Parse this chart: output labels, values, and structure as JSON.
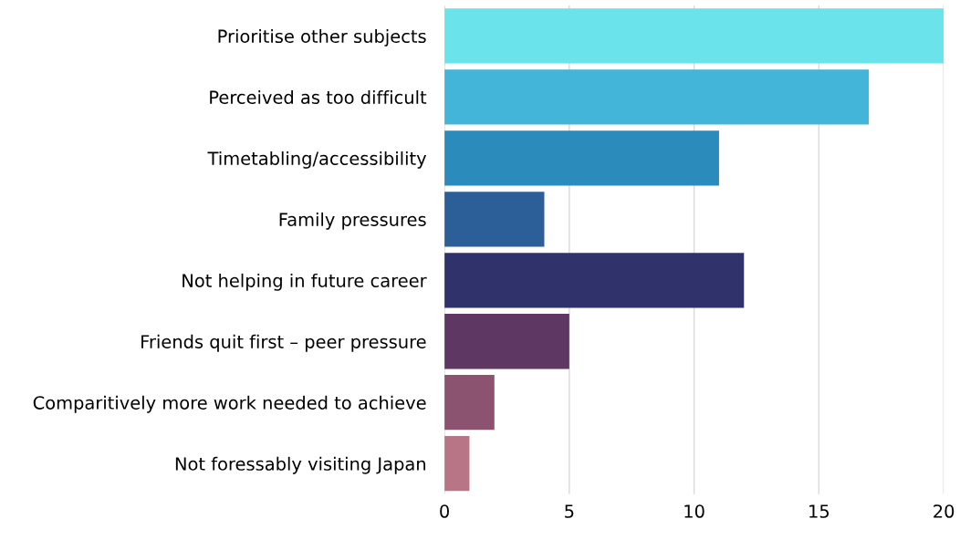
{
  "chart_data": {
    "type": "bar",
    "orientation": "horizontal",
    "categories": [
      "Prioritise other subjects",
      "Perceived as too difficult",
      "Timetabling/accessibility",
      "Family pressures",
      "Not helping in future career",
      "Friends quit first – peer pressure",
      "Comparitively more work needed to achieve",
      "Not foressably visiting Japan"
    ],
    "values": [
      20,
      17,
      11,
      4,
      12,
      5,
      2,
      1
    ],
    "colors": [
      "#6ae3ea",
      "#42b5d8",
      "#2b8bba",
      "#2c5e97",
      "#30336b",
      "#5e3763",
      "#8c5370",
      "#b87585"
    ],
    "xlim": [
      0,
      20
    ],
    "xticks": [
      0,
      5,
      10,
      15,
      20
    ],
    "grid": "x"
  }
}
